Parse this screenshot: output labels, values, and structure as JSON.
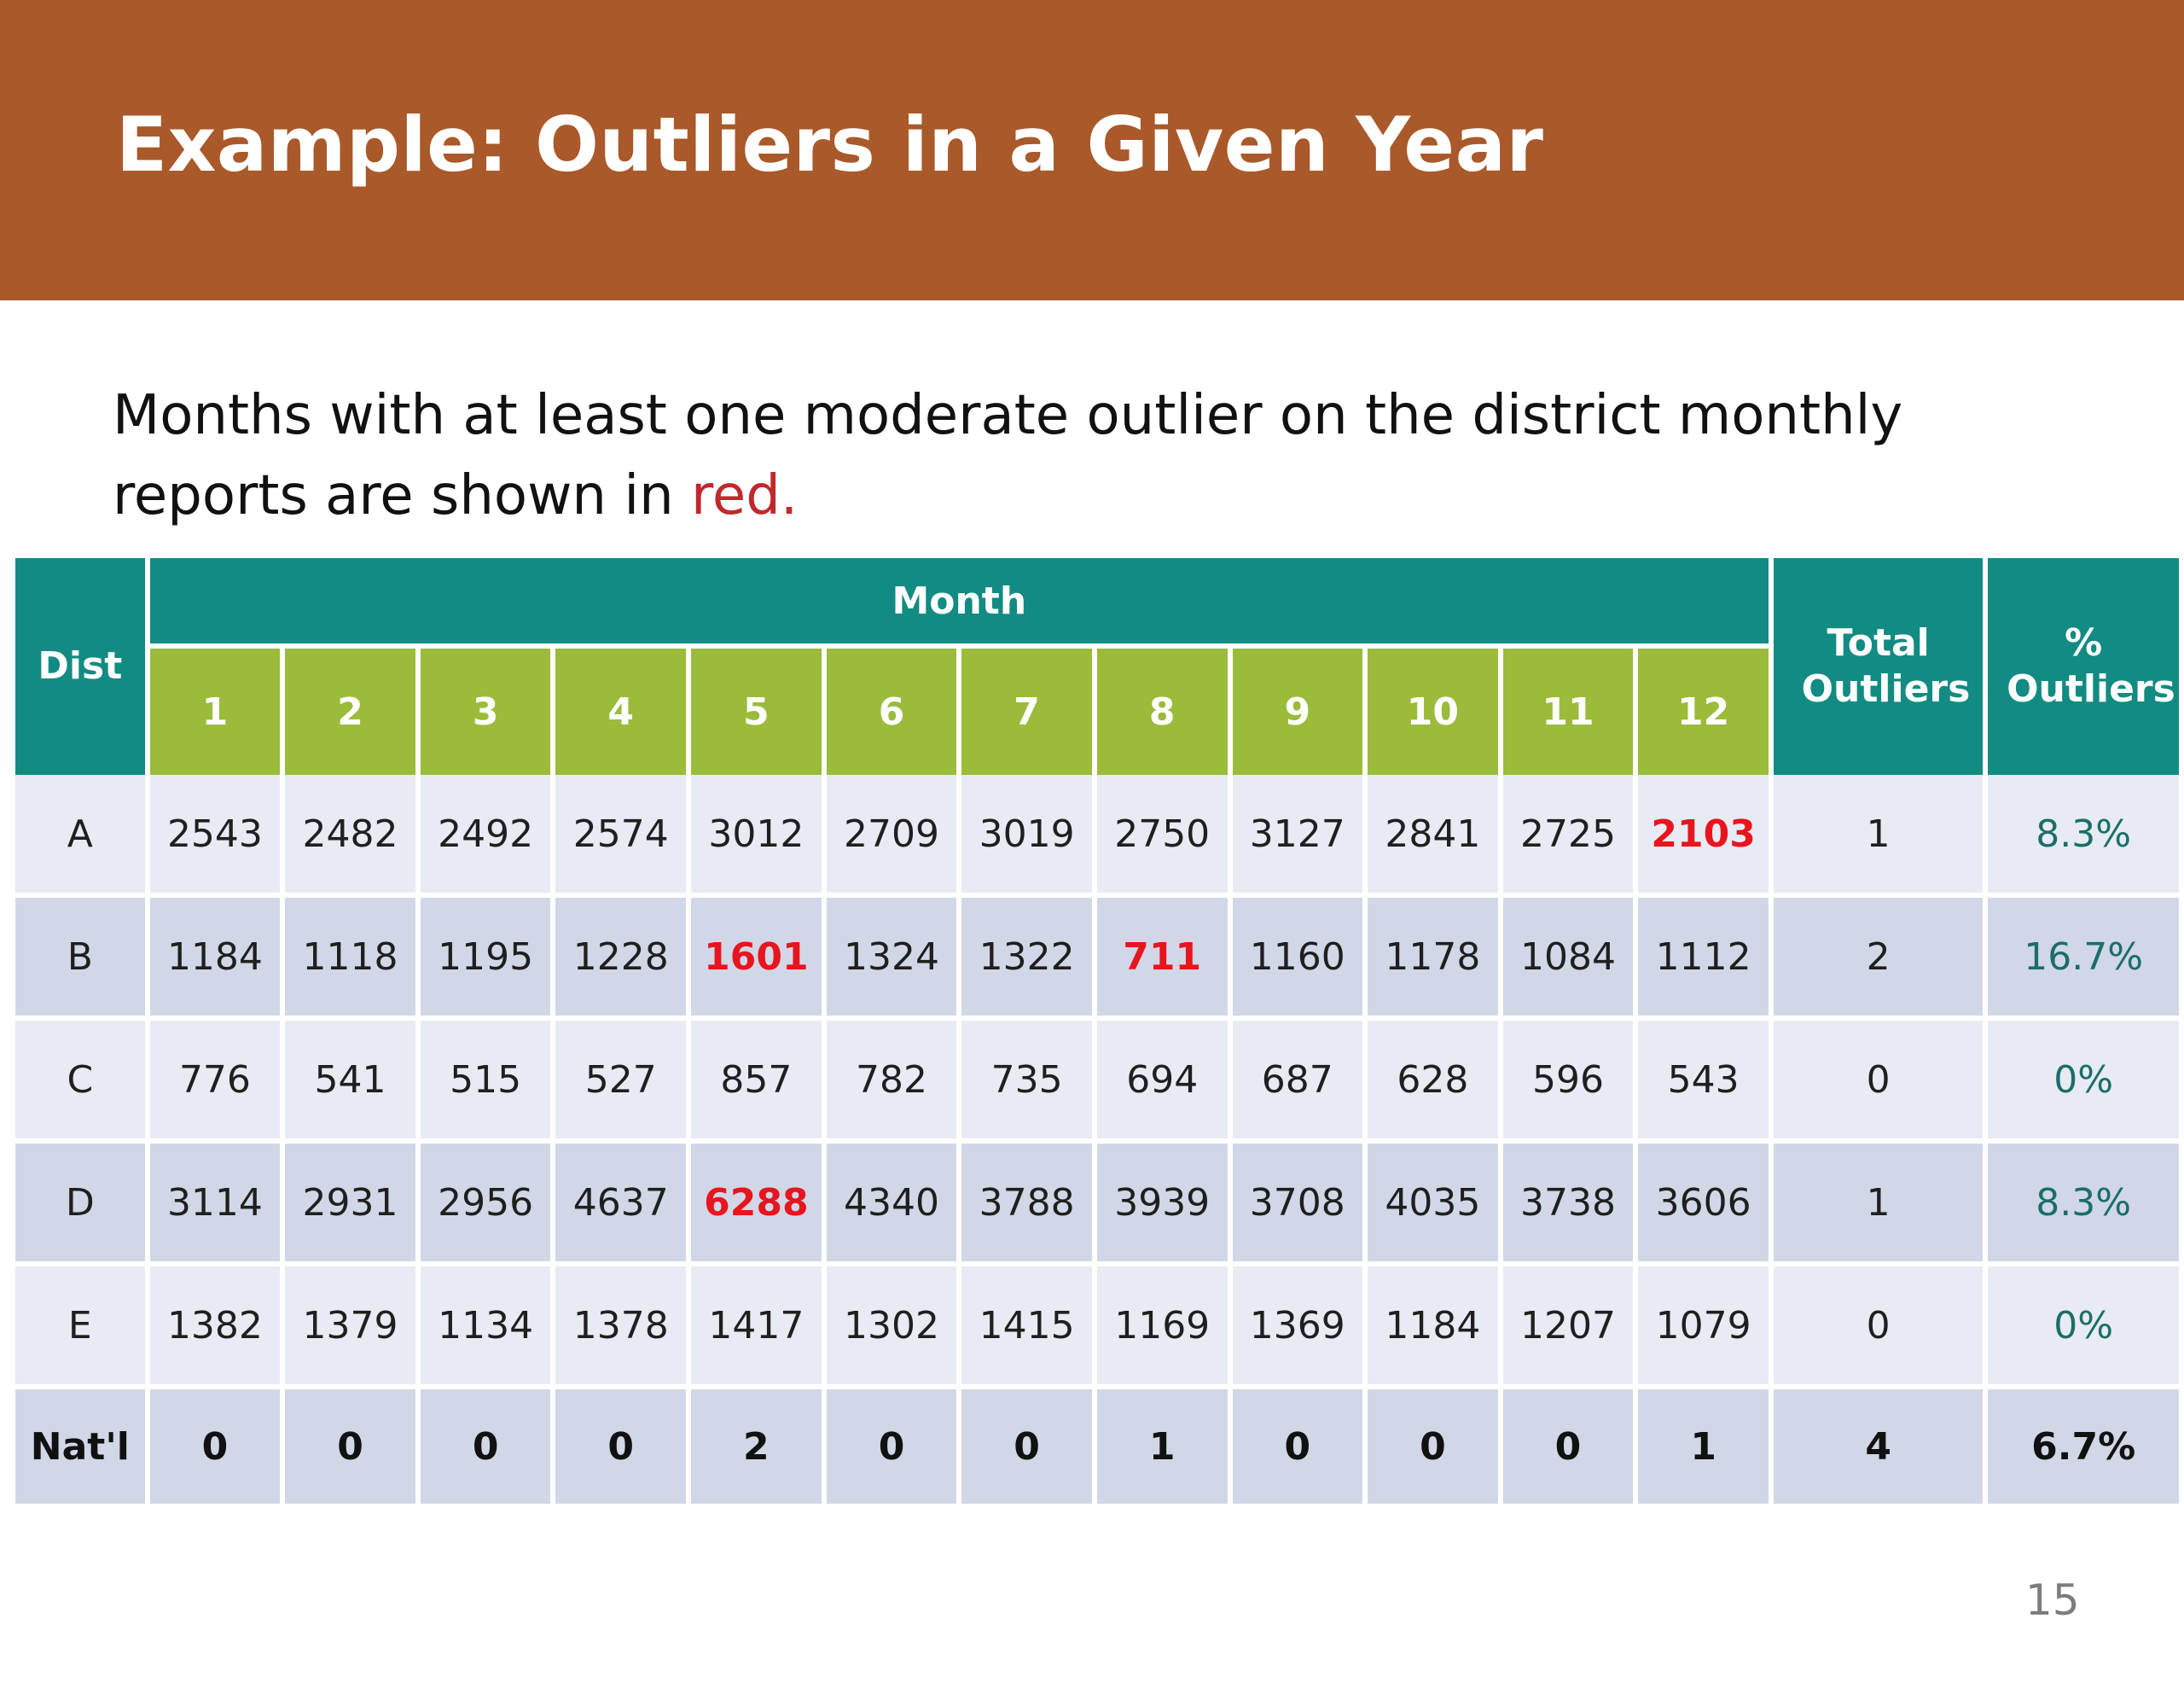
{
  "slide": {
    "title": "Example: Outliers in a Given Year",
    "subtitle_before": "Months with at least one moderate outlier on the district monthly reports are shown in ",
    "subtitle_red": "red.",
    "page_number": "15"
  },
  "table": {
    "dist_header": "Dist",
    "month_header": "Month",
    "total_header": "Total Outliers",
    "pct_header": "% Outliers",
    "months": [
      "1",
      "2",
      "3",
      "4",
      "5",
      "6",
      "7",
      "8",
      "9",
      "10",
      "11",
      "12"
    ],
    "rows": [
      {
        "dist": "A",
        "values": [
          "2543",
          "2482",
          "2492",
          "2574",
          "3012",
          "2709",
          "3019",
          "2750",
          "3127",
          "2841",
          "2725",
          "2103"
        ],
        "outlier_months": [
          12
        ],
        "total": "1",
        "pct": "8.3%"
      },
      {
        "dist": "B",
        "values": [
          "1184",
          "1118",
          "1195",
          "1228",
          "1601",
          "1324",
          "1322",
          "711",
          "1160",
          "1178",
          "1084",
          "1112"
        ],
        "outlier_months": [
          5,
          8
        ],
        "total": "2",
        "pct": "16.7%"
      },
      {
        "dist": "C",
        "values": [
          "776",
          "541",
          "515",
          "527",
          "857",
          "782",
          "735",
          "694",
          "687",
          "628",
          "596",
          "543"
        ],
        "outlier_months": [],
        "total": "0",
        "pct": "0%"
      },
      {
        "dist": "D",
        "values": [
          "3114",
          "2931",
          "2956",
          "4637",
          "6288",
          "4340",
          "3788",
          "3939",
          "3708",
          "4035",
          "3738",
          "3606"
        ],
        "outlier_months": [
          5
        ],
        "total": "1",
        "pct": "8.3%"
      },
      {
        "dist": "E",
        "values": [
          "1382",
          "1379",
          "1134",
          "1378",
          "1417",
          "1302",
          "1415",
          "1169",
          "1369",
          "1184",
          "1207",
          "1079"
        ],
        "outlier_months": [],
        "total": "0",
        "pct": "0%"
      }
    ],
    "national": {
      "label": "Nat'l",
      "values": [
        "0",
        "0",
        "0",
        "0",
        "2",
        "0",
        "0",
        "1",
        "0",
        "0",
        "0",
        "1"
      ],
      "total": "4",
      "pct": "6.7%"
    },
    "colors": {
      "header_teal": "#128b82",
      "header_green": "#9bbb3b",
      "outlier_red": "#e8141e",
      "pct_teal": "#1b6e69",
      "row_light": "#e8ebf3",
      "row_dark": "#d1d7e7",
      "title_bar": "#a9592a"
    }
  }
}
